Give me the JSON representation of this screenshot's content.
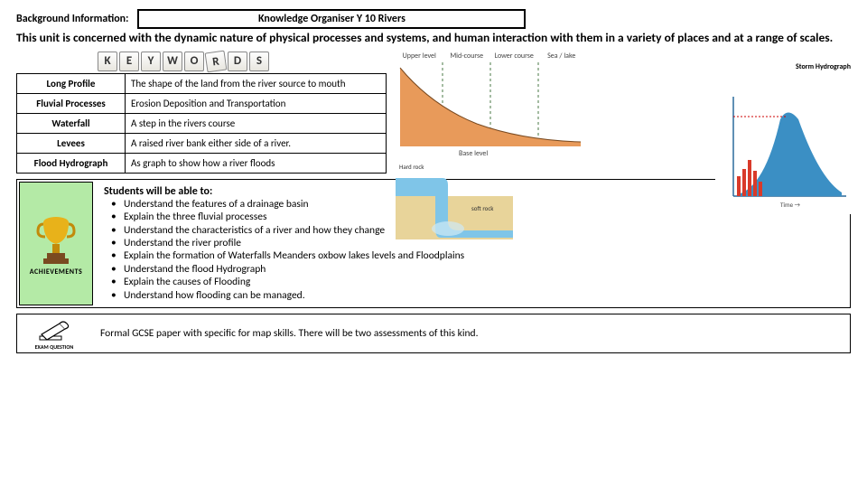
{
  "header": {
    "bg_label": "Background Information:",
    "title": "Knowledge Organiser Y 10 Rivers"
  },
  "intro": "This unit is concerned with the dynamic nature of physical processes and systems, and human interaction with them in a variety of places and at a range of scales.",
  "keywords_tiles": [
    "K",
    "E",
    "Y",
    "W",
    "O",
    "R",
    "D",
    "S"
  ],
  "keywords": [
    {
      "term": "Long Profile",
      "def": "The shape of the land from the river source to mouth"
    },
    {
      "term": "Fluvial Processes",
      "def": "Erosion Deposition and Transportation"
    },
    {
      "term": "Waterfall",
      "def": "A step in the rivers course"
    },
    {
      "term": "Levees",
      "def": "A raised river bank either side of a river."
    },
    {
      "term": "Flood Hydrograph",
      "def": "As graph to show how a river floods"
    }
  ],
  "long_profile": {
    "course_labels": [
      "Upper level",
      "Mid-course",
      "Lower course",
      "Sea / lake"
    ],
    "base_label": "Base level",
    "curve_fill": "#e89a5a",
    "curve_stroke": "#7a4a20",
    "divider_color": "#4a7a44",
    "bg": "#ffffff"
  },
  "waterfall": {
    "hard_rock": "#c96a3a",
    "soft_rock": "#e8d49a",
    "water": "#7fc5e8",
    "spray": "#cfeaf5",
    "labels": {
      "hard": "Hard rock",
      "soft": "soft rock"
    }
  },
  "hydrograph": {
    "title": "Storm Hydrograph",
    "discharge_fill": "#3b8fc4",
    "rain_fill": "#d93a2a",
    "axis_color": "#2b6a9c",
    "bg": "#ffffff"
  },
  "trophy": {
    "cup": "#e8b21a",
    "cup_dark": "#c28a0a",
    "base": "#7a4a20",
    "bg": "#b4eaa6",
    "label": "ACHIEVEMENTS"
  },
  "achievements": {
    "heading": "Students will be able to:",
    "items": [
      "Understand the features of a drainage basin",
      "Explain the three fluvial processes",
      "Understand the characteristics of a river and how they change",
      "Understand the river profile",
      "Explain the formation of Waterfalls Meanders oxbow lakes levels and Floodplains",
      "Understand the flood Hydrograph",
      "Explain the causes of Flooding",
      "Understand  how flooding can be managed."
    ]
  },
  "exam": {
    "label": "EXAM QUESTION",
    "text": "Formal GCSE paper with specific for map skills. There will be two  assessments of this kind."
  }
}
